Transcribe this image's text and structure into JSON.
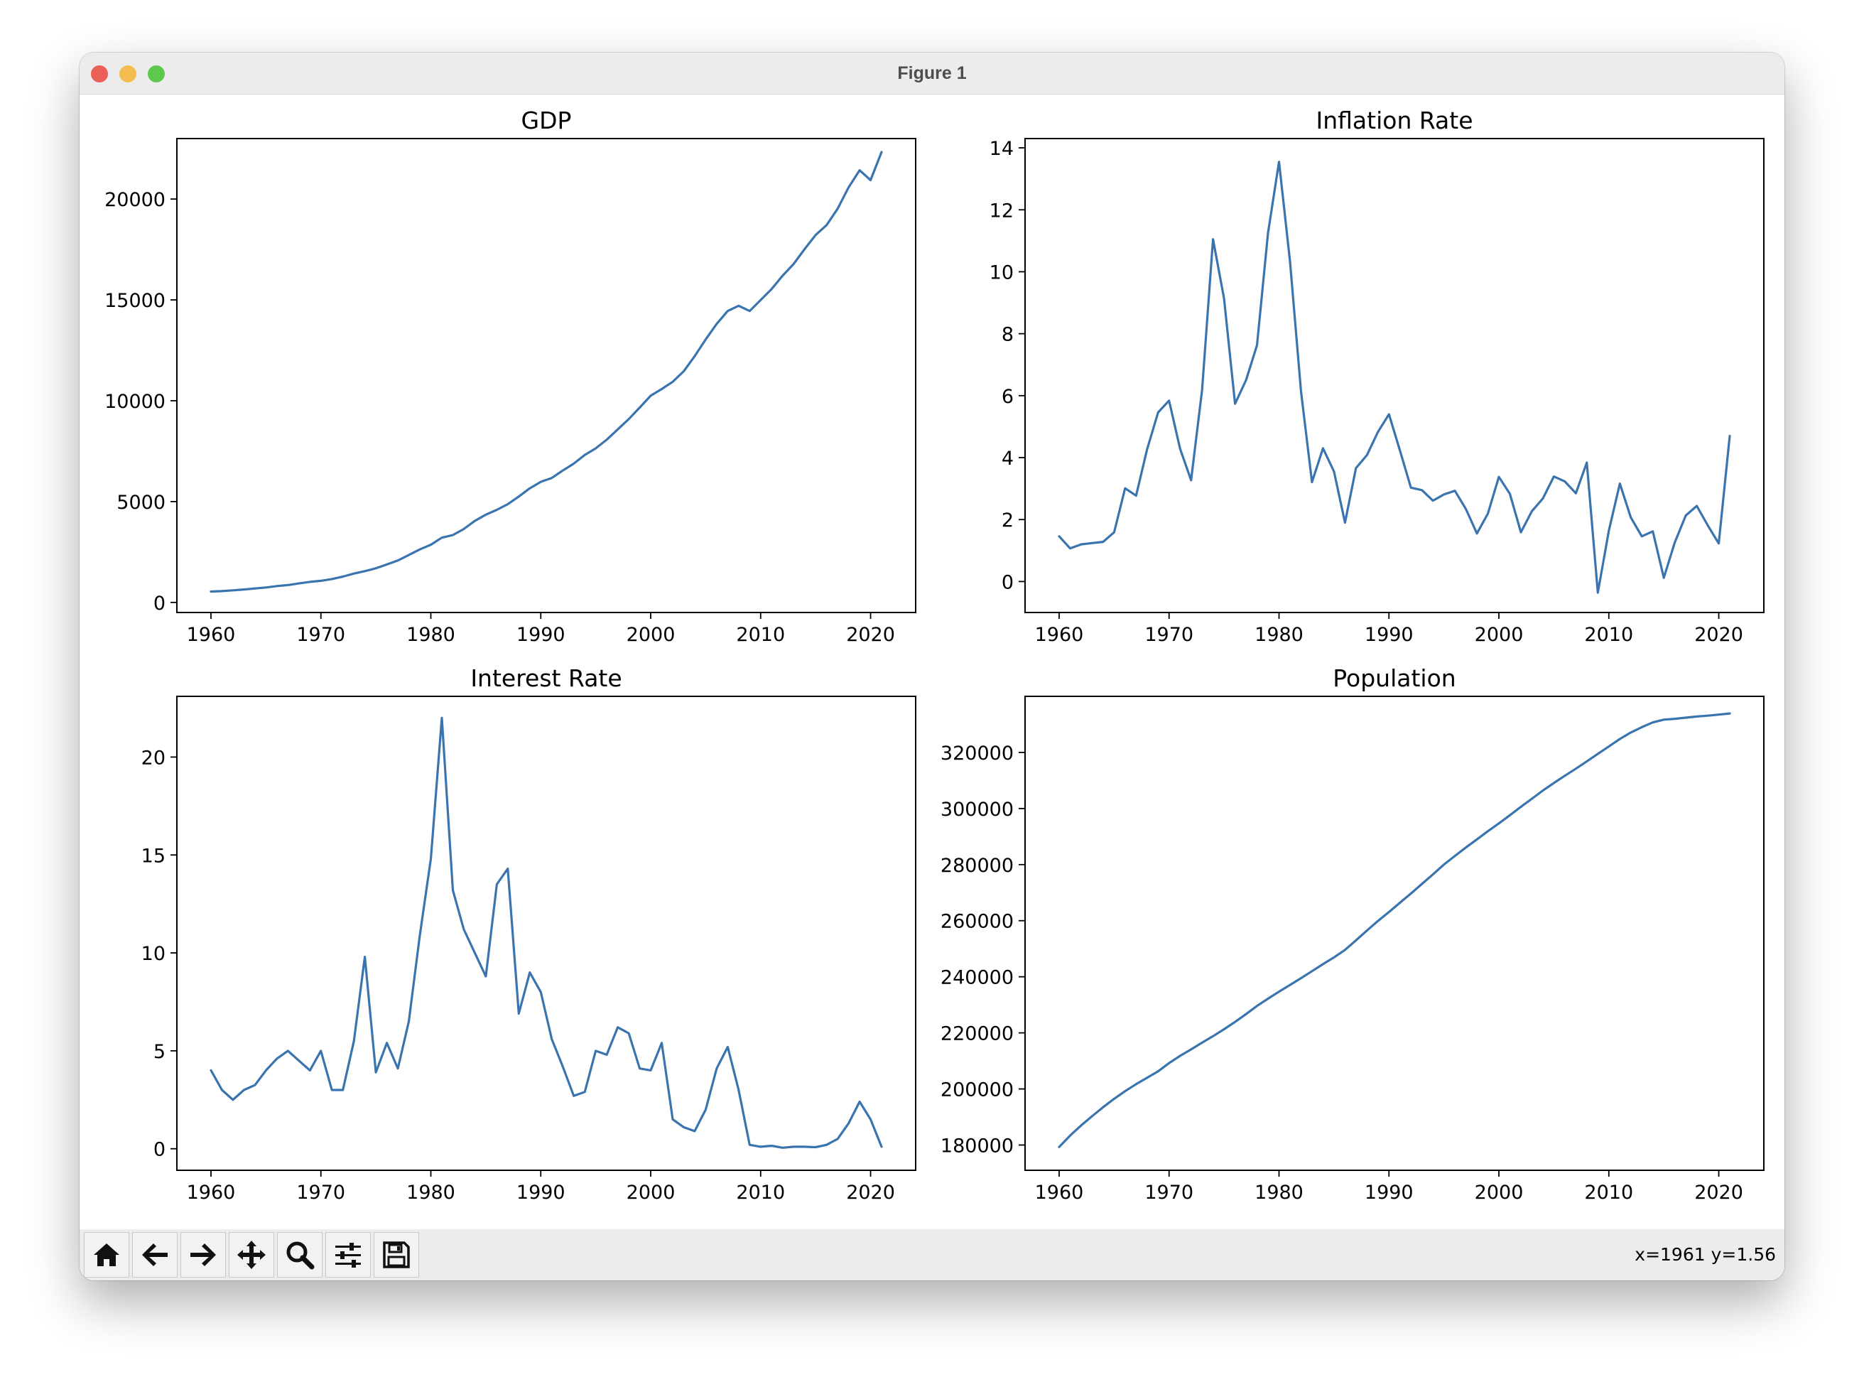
{
  "window": {
    "title": "Figure 1"
  },
  "toolbar": {
    "buttons": [
      {
        "name": "home-button",
        "icon": "home-icon"
      },
      {
        "name": "back-button",
        "icon": "arrow-left-icon"
      },
      {
        "name": "forward-button",
        "icon": "arrow-right-icon"
      },
      {
        "name": "pan-button",
        "icon": "move-icon"
      },
      {
        "name": "zoom-button",
        "icon": "magnifier-icon"
      },
      {
        "name": "configure-subplots-button",
        "icon": "sliders-icon"
      },
      {
        "name": "save-button",
        "icon": "floppy-disk-icon"
      }
    ],
    "coords": "x=1961 y=1.56"
  },
  "colors": {
    "line": "#3a74ae",
    "titlebar": "#ececec",
    "toolbar": "#ececec"
  },
  "chart_data": [
    {
      "type": "line",
      "title": "GDP",
      "grid": false,
      "xlim": [
        1956.9,
        1924.1
      ],
      "ylim": [
        -500,
        23000
      ],
      "xticks": [
        1960,
        1970,
        1980,
        1990,
        2000,
        2010,
        2020
      ],
      "yticks": [
        0,
        5000,
        10000,
        15000,
        20000
      ],
      "x": [
        1960,
        1961,
        1962,
        1963,
        1964,
        1965,
        1966,
        1967,
        1968,
        1969,
        1970,
        1971,
        1972,
        1973,
        1974,
        1975,
        1976,
        1977,
        1978,
        1979,
        1980,
        1981,
        1982,
        1983,
        1984,
        1985,
        1986,
        1987,
        1988,
        1989,
        1990,
        1991,
        1992,
        1993,
        1994,
        1995,
        1996,
        1997,
        1998,
        1999,
        2000,
        2001,
        2002,
        2003,
        2004,
        2005,
        2006,
        2007,
        2008,
        2009,
        2010,
        2011,
        2012,
        2013,
        2014,
        2015,
        2016,
        2017,
        2018,
        2019,
        2020,
        2021
      ],
      "y": [
        540,
        560,
        600,
        640,
        690,
        740,
        810,
        860,
        940,
        1020,
        1070,
        1160,
        1280,
        1430,
        1550,
        1690,
        1880,
        2080,
        2350,
        2630,
        2860,
        3210,
        3340,
        3640,
        4040,
        4350,
        4590,
        4870,
        5250,
        5660,
        5980,
        6170,
        6540,
        6880,
        7310,
        7640,
        8070,
        8580,
        9090,
        9660,
        10250,
        10580,
        10940,
        11460,
        12210,
        13040,
        13810,
        14450,
        14710,
        14450,
        14990,
        15540,
        16200,
        16780,
        17520,
        18220,
        18710,
        19520,
        20580,
        21430,
        20940,
        22330
      ]
    },
    {
      "type": "line",
      "title": "Inflation Rate",
      "grid": false,
      "xlim": [
        1956.9,
        2024.1
      ],
      "ylim": [
        -1,
        14.3
      ],
      "xticks": [
        1960,
        1970,
        1980,
        1990,
        2000,
        2010,
        2020
      ],
      "yticks": [
        0,
        2,
        4,
        6,
        8,
        10,
        12,
        14
      ],
      "x": [
        1960,
        1961,
        1962,
        1963,
        1964,
        1965,
        1966,
        1967,
        1968,
        1969,
        1970,
        1971,
        1972,
        1973,
        1974,
        1975,
        1976,
        1977,
        1978,
        1979,
        1980,
        1981,
        1982,
        1983,
        1984,
        1985,
        1986,
        1987,
        1988,
        1989,
        1990,
        1991,
        1992,
        1993,
        1994,
        1995,
        1996,
        1997,
        1998,
        1999,
        2000,
        2001,
        2002,
        2003,
        2004,
        2005,
        2006,
        2007,
        2008,
        2009,
        2010,
        2011,
        2012,
        2013,
        2014,
        2015,
        2016,
        2017,
        2018,
        2019,
        2020,
        2021
      ],
      "y": [
        1.46,
        1.07,
        1.2,
        1.24,
        1.28,
        1.59,
        3.01,
        2.77,
        4.27,
        5.46,
        5.84,
        4.29,
        3.27,
        6.18,
        11.05,
        9.14,
        5.74,
        6.5,
        7.63,
        11.25,
        13.55,
        10.33,
        6.13,
        3.21,
        4.3,
        3.55,
        1.9,
        3.66,
        4.08,
        4.83,
        5.4,
        4.23,
        3.03,
        2.95,
        2.61,
        2.81,
        2.93,
        2.34,
        1.55,
        2.19,
        3.38,
        2.83,
        1.59,
        2.27,
        2.68,
        3.39,
        3.23,
        2.85,
        3.84,
        -0.36,
        1.64,
        3.16,
        2.07,
        1.46,
        1.62,
        0.12,
        1.26,
        2.13,
        2.44,
        1.81,
        1.23,
        4.7
      ]
    },
    {
      "type": "line",
      "title": "Interest Rate",
      "grid": false,
      "xlim": [
        1956.9,
        2024.1
      ],
      "ylim": [
        -1.1,
        23.1
      ],
      "xticks": [
        1960,
        1970,
        1980,
        1990,
        2000,
        2010,
        2020
      ],
      "yticks": [
        0,
        5,
        10,
        15,
        20
      ],
      "x": [
        1960,
        1961,
        1962,
        1963,
        1964,
        1965,
        1966,
        1967,
        1968,
        1969,
        1970,
        1971,
        1972,
        1973,
        1974,
        1975,
        1976,
        1977,
        1978,
        1979,
        1980,
        1981,
        1982,
        1983,
        1984,
        1985,
        1986,
        1987,
        1988,
        1989,
        1990,
        1991,
        1992,
        1993,
        1994,
        1995,
        1996,
        1997,
        1998,
        1999,
        2000,
        2001,
        2002,
        2003,
        2004,
        2005,
        2006,
        2007,
        2008,
        2009,
        2010,
        2011,
        2012,
        2013,
        2014,
        2015,
        2016,
        2017,
        2018,
        2019,
        2020,
        2021
      ],
      "y": [
        4.0,
        3.0,
        2.5,
        3.0,
        3.25,
        4.0,
        4.6,
        5.0,
        4.5,
        4.0,
        5.0,
        3.0,
        3.0,
        5.5,
        9.8,
        3.9,
        5.4,
        4.1,
        6.5,
        10.9,
        14.8,
        22.0,
        13.2,
        11.2,
        10.0,
        8.8,
        13.5,
        14.3,
        6.9,
        9.0,
        8.0,
        5.6,
        4.2,
        2.7,
        2.9,
        5.0,
        4.8,
        6.2,
        5.9,
        4.1,
        4.0,
        5.4,
        1.5,
        1.1,
        0.9,
        2.0,
        4.1,
        5.2,
        3.0,
        0.2,
        0.1,
        0.15,
        0.05,
        0.1,
        0.1,
        0.08,
        0.2,
        0.5,
        1.3,
        2.4,
        1.5,
        0.1
      ]
    },
    {
      "type": "line",
      "title": "Population",
      "grid": false,
      "xlim": [
        1956.9,
        2024.1
      ],
      "ylim": [
        171000,
        340000
      ],
      "xticks": [
        1960,
        1970,
        1980,
        1990,
        2000,
        2010,
        2020
      ],
      "yticks": [
        180000,
        200000,
        220000,
        240000,
        260000,
        280000,
        300000,
        320000
      ],
      "x": [
        1960,
        1961,
        1962,
        1963,
        1964,
        1965,
        1966,
        1967,
        1968,
        1969,
        1970,
        1971,
        1972,
        1973,
        1974,
        1975,
        1976,
        1977,
        1978,
        1979,
        1980,
        1981,
        1982,
        1983,
        1984,
        1985,
        1986,
        1987,
        1988,
        1989,
        1990,
        1991,
        1992,
        1993,
        1994,
        1995,
        1996,
        1997,
        1998,
        1999,
        2000,
        2001,
        2002,
        2003,
        2004,
        2005,
        2006,
        2007,
        2008,
        2009,
        2010,
        2011,
        2012,
        2013,
        2014,
        2015,
        2016,
        2017,
        2018,
        2019,
        2020,
        2021
      ],
      "y": [
        179300,
        183400,
        187000,
        190300,
        193500,
        196500,
        199200,
        201700,
        204000,
        206300,
        209200,
        211800,
        214100,
        216500,
        218800,
        221300,
        223900,
        226700,
        229600,
        232200,
        234700,
        237100,
        239500,
        242000,
        244500,
        246900,
        249600,
        253000,
        256500,
        259900,
        263100,
        266400,
        269700,
        273100,
        276500,
        280000,
        283100,
        286100,
        289000,
        291900,
        294700,
        297600,
        300600,
        303500,
        306400,
        309100,
        311700,
        314200,
        316800,
        319500,
        322100,
        324800,
        327100,
        329000,
        330700,
        331700,
        332000,
        332400,
        332800,
        333100,
        333500,
        333900
      ]
    }
  ]
}
